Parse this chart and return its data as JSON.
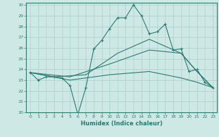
{
  "xlabel": "Humidex (Indice chaleur)",
  "xlim": [
    -0.5,
    23.5
  ],
  "ylim": [
    20,
    30.2
  ],
  "yticks": [
    20,
    21,
    22,
    23,
    24,
    25,
    26,
    27,
    28,
    29,
    30
  ],
  "xticks": [
    0,
    1,
    2,
    3,
    4,
    5,
    6,
    7,
    8,
    9,
    10,
    11,
    12,
    13,
    14,
    15,
    16,
    17,
    18,
    19,
    20,
    21,
    22,
    23
  ],
  "bg_color": "#cde8e5",
  "line_color": "#2a7a70",
  "grid_color": "#aacfcc",
  "lines": [
    {
      "x": [
        0,
        1,
        2,
        3,
        4,
        5,
        6,
        7,
        8,
        9,
        10,
        11,
        12,
        13,
        14,
        15,
        16,
        17,
        18,
        19,
        20,
        21,
        22,
        23
      ],
      "y": [
        23.7,
        23.0,
        23.3,
        23.3,
        23.2,
        22.5,
        19.8,
        22.3,
        25.9,
        26.7,
        27.8,
        28.8,
        28.8,
        30.0,
        29.0,
        27.3,
        27.5,
        28.2,
        25.8,
        25.9,
        23.8,
        24.0,
        22.8,
        22.3
      ],
      "marker": true
    },
    {
      "x": [
        0,
        3,
        7,
        11,
        15,
        19,
        21,
        23
      ],
      "y": [
        23.7,
        23.3,
        23.5,
        25.5,
        26.8,
        25.5,
        23.8,
        22.3
      ],
      "marker": false
    },
    {
      "x": [
        0,
        5,
        10,
        15,
        19,
        21,
        23
      ],
      "y": [
        23.7,
        23.3,
        24.5,
        25.8,
        25.5,
        23.8,
        22.3
      ],
      "marker": false
    },
    {
      "x": [
        0,
        5,
        10,
        15,
        19,
        21,
        23
      ],
      "y": [
        23.7,
        23.0,
        23.5,
        23.8,
        23.2,
        22.8,
        22.3
      ],
      "marker": false
    }
  ]
}
